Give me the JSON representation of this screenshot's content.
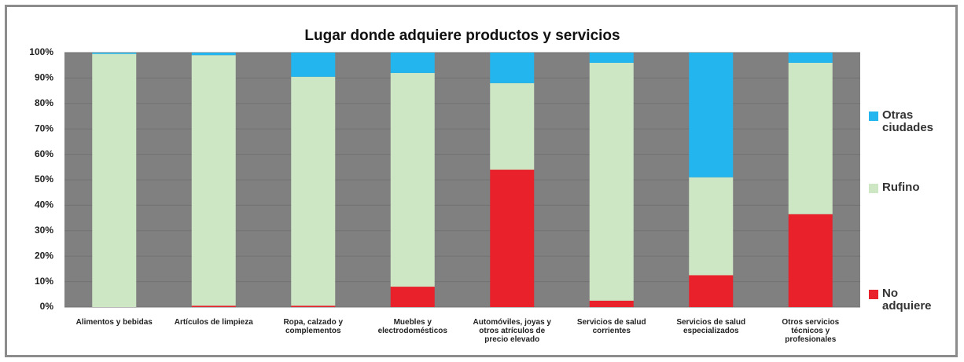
{
  "chart_data": {
    "type": "bar",
    "stacked": true,
    "title": "Lugar donde adquiere productos y servicios",
    "categories": [
      "Alimentos y bebidas",
      "Artículos de limpieza",
      "Ropa, calzado y complementos",
      "Muebles y electrodomésticos",
      "Automóviles, joyas y otros atrículos de precio elevado",
      "Servicios de salud corrientes",
      "Servicios de salud especializados",
      "Otros servicios técnicos y profesionales"
    ],
    "series": [
      {
        "name": "No adquiere",
        "color": "#e8212a",
        "values": [
          0,
          0.5,
          0.5,
          8,
          54,
          2.5,
          12.5,
          36.5
        ]
      },
      {
        "name": "Rufino",
        "color": "#cde6c4",
        "values": [
          99.5,
          98.5,
          90,
          84,
          34,
          93.5,
          38.5,
          59.5
        ]
      },
      {
        "name": "Otras ciudades",
        "color": "#23b5ee",
        "values": [
          0.5,
          1,
          9.5,
          8,
          12,
          4,
          49,
          4
        ]
      }
    ],
    "ylim": [
      0,
      100
    ],
    "yticks": [
      {
        "value": 0,
        "label": "0%"
      },
      {
        "value": 10,
        "label": "10%"
      },
      {
        "value": 20,
        "label": "20%"
      },
      {
        "value": 30,
        "label": "30%"
      },
      {
        "value": 40,
        "label": "40%"
      },
      {
        "value": 50,
        "label": "50%"
      },
      {
        "value": 60,
        "label": "60%"
      },
      {
        "value": 70,
        "label": "70%"
      },
      {
        "value": 80,
        "label": "80%"
      },
      {
        "value": 90,
        "label": "90%"
      },
      {
        "value": 100,
        "label": "100%"
      }
    ],
    "grid": true,
    "legend": "right"
  }
}
